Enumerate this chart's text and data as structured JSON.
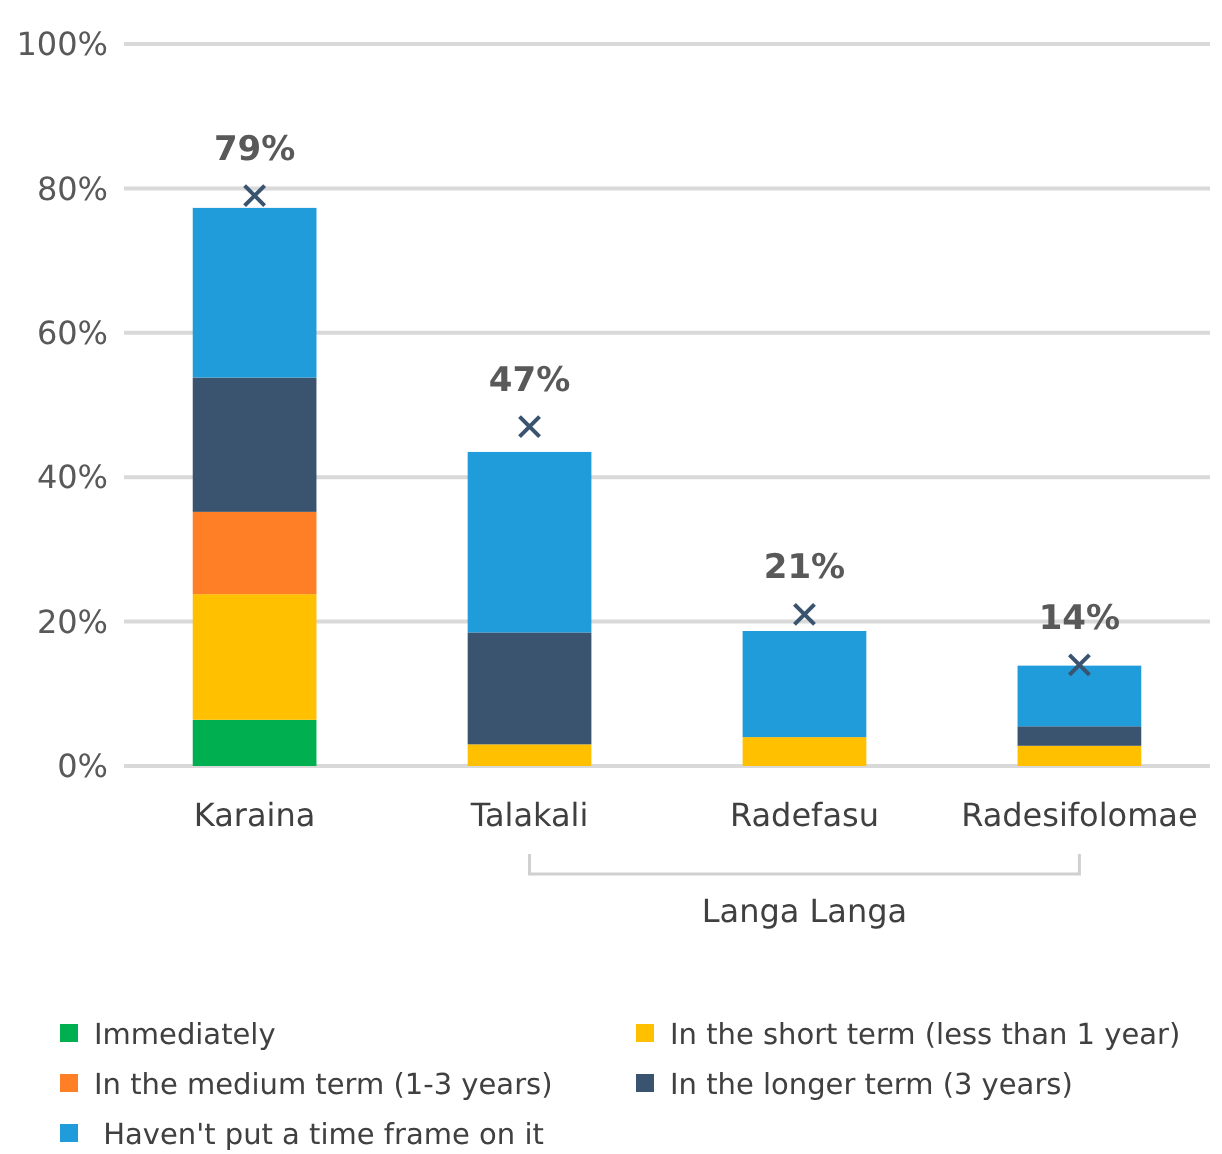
{
  "chart_data": {
    "type": "bar",
    "stacked": true,
    "categories": [
      "Karaina",
      "Talakali",
      "Radefasu",
      "Radesifolomae"
    ],
    "series": [
      {
        "name": "Immediately",
        "color": "#00b050",
        "values": [
          6.4,
          0,
          0,
          0
        ]
      },
      {
        "name": "In the short term (less than 1 year)",
        "color": "#ffc000",
        "values": [
          17.4,
          3,
          4,
          2.8
        ]
      },
      {
        "name": "In the medium term (1-3 years)",
        "color": "#ff7f27",
        "values": [
          11.4,
          0,
          0,
          0
        ]
      },
      {
        "name": "In the longer term (3 years)",
        "color": "#3a536e",
        "values": [
          18.6,
          15.5,
          0,
          2.7
        ]
      },
      {
        "name": " Haven't put a time frame on it",
        "color": "#1f9cd9",
        "values": [
          23.5,
          25,
          14.7,
          8.4
        ]
      },
      {
        "type": "scatter",
        "color": "#3a536e",
        "x": [
          "Karaina",
          "Talakali",
          "Radefasu",
          "Radesifolomae"
        ],
        "values": [
          79,
          47,
          21,
          14
        ],
        "value_labels": [
          "79%",
          "47%",
          "21%",
          "14%"
        ]
      }
    ],
    "marker": "cross",
    "ylim": [
      0,
      100
    ],
    "yticks": [
      {
        "value": 0,
        "label": "0%"
      },
      {
        "value": 20,
        "label": "20%"
      },
      {
        "value": 40,
        "label": "40%"
      },
      {
        "value": 60,
        "label": "60%"
      },
      {
        "value": 80,
        "label": "80%"
      },
      {
        "value": 100,
        "label": "100%"
      }
    ],
    "grid": "y",
    "legend": "bottom",
    "annotations": [
      "Langa Langa"
    ]
  }
}
